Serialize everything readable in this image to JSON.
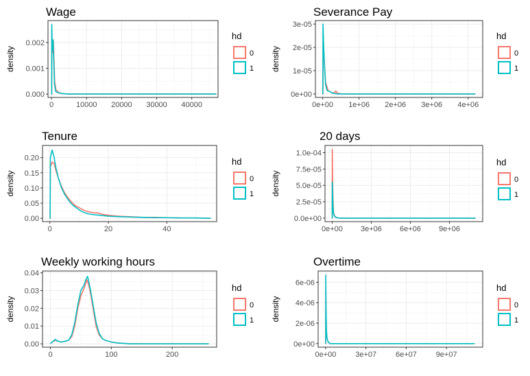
{
  "chart_data": [
    {
      "type": "line",
      "title": "Wage",
      "ylabel": "density",
      "xlim": [
        -1000,
        47500
      ],
      "ylim": [
        -0.00013,
        0.00285
      ],
      "xticks": [
        0,
        10000,
        20000,
        30000,
        40000
      ],
      "xtick_labels": [
        "0",
        "10000",
        "20000",
        "30000",
        "40000"
      ],
      "yticks": [
        0,
        0.001,
        0.002
      ],
      "ytick_labels": [
        "0.000",
        "0.001",
        "0.002"
      ],
      "legend": {
        "title": "hd",
        "placement": "right",
        "entries": [
          "0",
          "1"
        ]
      },
      "series": [
        {
          "name": "0",
          "color": "#F8766D",
          "points": [
            [
              0,
              0
            ],
            [
              80,
              0
            ],
            [
              100,
              0.0019
            ],
            [
              300,
              0.0016
            ],
            [
              500,
              0.0021
            ],
            [
              700,
              0.0014
            ],
            [
              900,
              0.0005
            ],
            [
              1300,
              0.00015
            ],
            [
              2000,
              7e-05
            ],
            [
              3000,
              2e-05
            ],
            [
              5000,
              0
            ],
            [
              47000,
              0
            ]
          ]
        },
        {
          "name": "1",
          "color": "#00BFC4",
          "points": [
            [
              0,
              0
            ],
            [
              50,
              0
            ],
            [
              80,
              0.0027
            ],
            [
              250,
              0.0017
            ],
            [
              450,
              0.0021
            ],
            [
              650,
              0.0013
            ],
            [
              850,
              0.0004
            ],
            [
              1200,
              0.0001
            ],
            [
              2000,
              5e-05
            ],
            [
              3000,
              2e-05
            ],
            [
              5000,
              0
            ],
            [
              47000,
              0
            ]
          ]
        }
      ]
    },
    {
      "type": "line",
      "title": "Severance Pay",
      "ylabel": "density",
      "xlim": [
        -200000,
        4400000
      ],
      "ylim": [
        -1.5e-06,
        3.15e-05
      ],
      "xticks": [
        0,
        1000000,
        2000000,
        3000000,
        4000000
      ],
      "xtick_labels": [
        "0e+00",
        "1e+06",
        "2e+06",
        "3e+06",
        "4e+06"
      ],
      "yticks": [
        0,
        1e-05,
        2e-05,
        3e-05
      ],
      "ytick_labels": [
        "0e+00",
        "1e-05",
        "2e-05",
        "3e-05"
      ],
      "legend": {
        "title": "hd",
        "placement": "right",
        "entries": [
          "0",
          "1"
        ]
      },
      "series": [
        {
          "name": "0",
          "color": "#F8766D",
          "points": [
            [
              0,
              0
            ],
            [
              8000,
              0
            ],
            [
              15000,
              2.5e-05
            ],
            [
              40000,
              1.5e-05
            ],
            [
              80000,
              5e-06
            ],
            [
              150000,
              1.5e-06
            ],
            [
              250000,
              5e-07
            ],
            [
              330000,
              5e-07
            ],
            [
              360000,
              1.3e-06
            ],
            [
              390000,
              5e-07
            ],
            [
              500000,
              0
            ],
            [
              4200000,
              0
            ]
          ]
        },
        {
          "name": "1",
          "color": "#00BFC4",
          "points": [
            [
              0,
              0
            ],
            [
              5000,
              0
            ],
            [
              10000,
              3e-05
            ],
            [
              25000,
              2.2e-05
            ],
            [
              50000,
              1.2e-05
            ],
            [
              80000,
              4e-06
            ],
            [
              120000,
              1.5e-06
            ],
            [
              200000,
              1e-06
            ],
            [
              280000,
              3e-07
            ],
            [
              400000,
              0
            ],
            [
              4200000,
              0
            ]
          ]
        }
      ]
    },
    {
      "type": "line",
      "title": "Tenure",
      "ylabel": "density",
      "xlim": [
        -2.5,
        57
      ],
      "ylim": [
        -0.011,
        0.24
      ],
      "xticks": [
        0,
        20,
        40
      ],
      "xtick_labels": [
        "0",
        "20",
        "40"
      ],
      "yticks": [
        0,
        0.05,
        0.1,
        0.15,
        0.2
      ],
      "ytick_labels": [
        "0.00",
        "0.05",
        "0.10",
        "0.15",
        "0.20"
      ],
      "legend": {
        "title": "hd",
        "placement": "right",
        "entries": [
          "0",
          "1"
        ]
      },
      "series": [
        {
          "name": "0",
          "color": "#F8766D",
          "points": [
            [
              0,
              0
            ],
            [
              0.1,
              0
            ],
            [
              0.2,
              0.17
            ],
            [
              0.8,
              0.185
            ],
            [
              1.5,
              0.18
            ],
            [
              2,
              0.16
            ],
            [
              3,
              0.13
            ],
            [
              4,
              0.105
            ],
            [
              5,
              0.085
            ],
            [
              6,
              0.07
            ],
            [
              7,
              0.058
            ],
            [
              8,
              0.048
            ],
            [
              9,
              0.04
            ],
            [
              10,
              0.035
            ],
            [
              11,
              0.03
            ],
            [
              12,
              0.025
            ],
            [
              13,
              0.022
            ],
            [
              14,
              0.02
            ],
            [
              15,
              0.018
            ],
            [
              16,
              0.018
            ],
            [
              17,
              0.016
            ],
            [
              18,
              0.013
            ],
            [
              20,
              0.01
            ],
            [
              22,
              0.008
            ],
            [
              25,
              0.006
            ],
            [
              28,
              0.005
            ],
            [
              32,
              0.003
            ],
            [
              36,
              0.003
            ],
            [
              40,
              0.002
            ],
            [
              45,
              0.001
            ],
            [
              50,
              0.001
            ],
            [
              55,
              0
            ]
          ]
        },
        {
          "name": "1",
          "color": "#00BFC4",
          "points": [
            [
              0,
              0
            ],
            [
              0.1,
              0
            ],
            [
              0.2,
              0.2
            ],
            [
              0.8,
              0.225
            ],
            [
              1.5,
              0.2
            ],
            [
              2,
              0.17
            ],
            [
              3,
              0.13
            ],
            [
              4,
              0.1
            ],
            [
              5,
              0.08
            ],
            [
              6,
              0.065
            ],
            [
              7,
              0.052
            ],
            [
              8,
              0.042
            ],
            [
              9,
              0.035
            ],
            [
              10,
              0.028
            ],
            [
              11,
              0.022
            ],
            [
              12,
              0.018
            ],
            [
              13,
              0.015
            ],
            [
              14,
              0.013
            ],
            [
              15,
              0.012
            ],
            [
              16,
              0.011
            ],
            [
              17,
              0.01
            ],
            [
              18,
              0.009
            ],
            [
              20,
              0.007
            ],
            [
              22,
              0.006
            ],
            [
              25,
              0.005
            ],
            [
              28,
              0.004
            ],
            [
              32,
              0.003
            ],
            [
              36,
              0.002
            ],
            [
              40,
              0.002
            ],
            [
              45,
              0.001
            ],
            [
              50,
              0.001
            ],
            [
              55,
              0
            ]
          ]
        }
      ]
    },
    {
      "type": "line",
      "title": "20 days",
      "ylabel": "density",
      "xlim": [
        -550000,
        11550000
      ],
      "ylim": [
        -5.3e-06,
        0.000111
      ],
      "xticks": [
        0,
        3000000,
        6000000,
        9000000
      ],
      "xtick_labels": [
        "0e+00",
        "3e+06",
        "6e+06",
        "9e+06"
      ],
      "yticks": [
        0,
        2.5e-05,
        5e-05,
        7.5e-05,
        0.0001
      ],
      "ytick_labels": [
        "0.0e+00",
        "2.5e-05",
        "5.0e-05",
        "7.5e-05",
        "1.0e-04"
      ],
      "legend": {
        "title": "hd",
        "placement": "right",
        "entries": [
          "0",
          "1"
        ]
      },
      "series": [
        {
          "name": "0",
          "color": "#F8766D",
          "points": [
            [
              0,
              0
            ],
            [
              5000,
              0
            ],
            [
              10000,
              0.000105
            ],
            [
              30000,
              6.5e-05
            ],
            [
              60000,
              3e-05
            ],
            [
              100000,
              1e-05
            ],
            [
              150000,
              5e-06
            ],
            [
              250000,
              2e-06
            ],
            [
              400000,
              5e-07
            ],
            [
              600000,
              0
            ],
            [
              11000000,
              0
            ]
          ]
        },
        {
          "name": "1",
          "color": "#00BFC4",
          "points": [
            [
              0,
              0
            ],
            [
              5000,
              0
            ],
            [
              10000,
              5.5e-05
            ],
            [
              30000,
              4e-05
            ],
            [
              60000,
              2e-05
            ],
            [
              100000,
              8e-06
            ],
            [
              150000,
              4e-06
            ],
            [
              250000,
              1.5e-06
            ],
            [
              400000,
              5e-07
            ],
            [
              600000,
              0
            ],
            [
              11000000,
              0
            ]
          ]
        }
      ]
    },
    {
      "type": "line",
      "title": "Weekly working hours",
      "ylabel": "density",
      "xlim": [
        -13,
        273
      ],
      "ylim": [
        -0.0019,
        0.041
      ],
      "xticks": [
        0,
        100,
        200
      ],
      "xtick_labels": [
        "0",
        "100",
        "200"
      ],
      "yticks": [
        0,
        0.01,
        0.02,
        0.03,
        0.04
      ],
      "ytick_labels": [
        "0.00",
        "0.01",
        "0.02",
        "0.03",
        "0.04"
      ],
      "legend": {
        "title": "hd",
        "placement": "right",
        "entries": [
          "0",
          "1"
        ]
      },
      "series": [
        {
          "name": "0",
          "color": "#F8766D",
          "points": [
            [
              0,
              0
            ],
            [
              3,
              0.001
            ],
            [
              8,
              0.002
            ],
            [
              12,
              0.0015
            ],
            [
              18,
              0.001
            ],
            [
              25,
              0.0015
            ],
            [
              30,
              0.002
            ],
            [
              35,
              0.004
            ],
            [
              40,
              0.01
            ],
            [
              45,
              0.02
            ],
            [
              50,
              0.027
            ],
            [
              55,
              0.031
            ],
            [
              58,
              0.034
            ],
            [
              60,
              0.036
            ],
            [
              62,
              0.034
            ],
            [
              65,
              0.03
            ],
            [
              70,
              0.02
            ],
            [
              75,
              0.01
            ],
            [
              80,
              0.005
            ],
            [
              85,
              0.003
            ],
            [
              90,
              0.002
            ],
            [
              100,
              0.001
            ],
            [
              110,
              0.0005
            ],
            [
              130,
              0
            ],
            [
              260,
              0
            ]
          ]
        },
        {
          "name": "1",
          "color": "#00BFC4",
          "points": [
            [
              0,
              0
            ],
            [
              3,
              0.001
            ],
            [
              8,
              0.0025
            ],
            [
              12,
              0.0015
            ],
            [
              18,
              0.001
            ],
            [
              25,
              0.0015
            ],
            [
              30,
              0.002
            ],
            [
              35,
              0.005
            ],
            [
              40,
              0.012
            ],
            [
              45,
              0.022
            ],
            [
              50,
              0.03
            ],
            [
              55,
              0.033
            ],
            [
              58,
              0.036
            ],
            [
              61,
              0.038
            ],
            [
              63,
              0.035
            ],
            [
              66,
              0.03
            ],
            [
              70,
              0.022
            ],
            [
              75,
              0.012
            ],
            [
              80,
              0.006
            ],
            [
              85,
              0.003
            ],
            [
              90,
              0.002
            ],
            [
              100,
              0.001
            ],
            [
              110,
              0.0005
            ],
            [
              130,
              0
            ],
            [
              260,
              0
            ]
          ]
        }
      ]
    },
    {
      "type": "line",
      "title": "Overtime",
      "ylabel": "density",
      "xlim": [
        -5600000,
        117000000
      ],
      "ylim": [
        -3.5e-07,
        7.1e-06
      ],
      "xticks": [
        0,
        30000000,
        60000000,
        90000000
      ],
      "xtick_labels": [
        "0e+00",
        "3e+07",
        "6e+07",
        "9e+07"
      ],
      "yticks": [
        0,
        2e-06,
        4e-06,
        6e-06
      ],
      "ytick_labels": [
        "0e+00",
        "2e-06",
        "4e-06",
        "6e-06"
      ],
      "legend": {
        "title": "hd",
        "placement": "right",
        "entries": [
          "0",
          "1"
        ]
      },
      "series": [
        {
          "name": "0",
          "color": "#F8766D",
          "points": [
            [
              0,
              0
            ],
            [
              50000,
              0
            ],
            [
              100000,
              5.5e-06
            ],
            [
              300000,
              3e-06
            ],
            [
              600000,
              1.2e-06
            ],
            [
              1000000,
              5e-07
            ],
            [
              1800000,
              2e-07
            ],
            [
              3000000,
              0
            ],
            [
              111000000,
              0
            ]
          ]
        },
        {
          "name": "1",
          "color": "#00BFC4",
          "points": [
            [
              0,
              0
            ],
            [
              50000,
              0
            ],
            [
              100000,
              6.7e-06
            ],
            [
              300000,
              3.5e-06
            ],
            [
              600000,
              1.3e-06
            ],
            [
              1000000,
              5e-07
            ],
            [
              1800000,
              2e-07
            ],
            [
              3000000,
              0
            ],
            [
              111000000,
              0
            ]
          ]
        }
      ]
    }
  ]
}
